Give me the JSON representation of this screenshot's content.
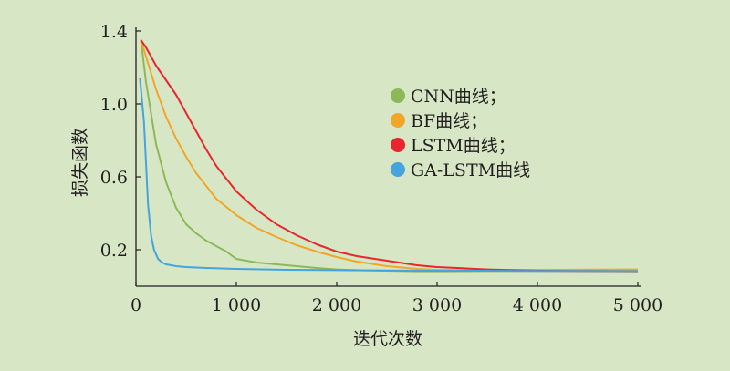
{
  "chart_data": {
    "type": "line",
    "title": "",
    "xlabel": "迭代次数",
    "ylabel": "损失函数",
    "xlim": [
      0,
      5000
    ],
    "ylim": [
      0,
      1.4
    ],
    "xticks": [
      0,
      1000,
      2000,
      3000,
      4000,
      5000
    ],
    "xtick_labels": [
      "0",
      "1 000",
      "2 000",
      "3 000",
      "4 000",
      "5 000"
    ],
    "yticks": [
      0.2,
      0.6,
      1.0,
      1.4
    ],
    "ytick_labels": [
      "0.2",
      "0.6",
      "1.0",
      "1.4"
    ],
    "grid": false,
    "legend_position": "center-right",
    "series": [
      {
        "name": "CNN曲线；",
        "color": "#8db85a",
        "x": [
          50,
          100,
          200,
          300,
          400,
          500,
          600,
          700,
          800,
          900,
          1000,
          1200,
          1400,
          1600,
          1800,
          2000,
          2200,
          2500,
          2800,
          3000,
          3500,
          4000,
          4500,
          5000
        ],
        "y": [
          1.35,
          1.12,
          0.78,
          0.57,
          0.43,
          0.34,
          0.29,
          0.25,
          0.22,
          0.19,
          0.15,
          0.13,
          0.12,
          0.11,
          0.1,
          0.092,
          0.088,
          0.085,
          0.082,
          0.082,
          0.083,
          0.084,
          0.086,
          0.087
        ]
      },
      {
        "name": "BF曲线；",
        "color": "#f0a62a",
        "x": [
          50,
          100,
          200,
          300,
          400,
          500,
          600,
          700,
          800,
          1000,
          1200,
          1400,
          1600,
          1800,
          2000,
          2200,
          2500,
          2800,
          3000,
          3500,
          4000,
          4500,
          5000
        ],
        "y": [
          1.35,
          1.26,
          1.08,
          0.93,
          0.81,
          0.71,
          0.62,
          0.55,
          0.48,
          0.39,
          0.32,
          0.27,
          0.225,
          0.19,
          0.16,
          0.135,
          0.11,
          0.095,
          0.09,
          0.088,
          0.09,
          0.091,
          0.092
        ]
      },
      {
        "name": "LSTM曲线；",
        "color": "#e8262c",
        "x": [
          50,
          100,
          200,
          300,
          400,
          500,
          600,
          700,
          800,
          1000,
          1200,
          1400,
          1600,
          1800,
          2000,
          2200,
          2500,
          2800,
          3000,
          3500,
          4000,
          4500,
          5000
        ],
        "y": [
          1.35,
          1.31,
          1.21,
          1.13,
          1.05,
          0.95,
          0.85,
          0.75,
          0.66,
          0.52,
          0.42,
          0.34,
          0.28,
          0.23,
          0.19,
          0.165,
          0.14,
          0.115,
          0.105,
          0.092,
          0.085,
          0.083,
          0.082
        ]
      },
      {
        "name": "GA-LSTM曲线",
        "color": "#45a3dd",
        "x": [
          40,
          80,
          120,
          150,
          180,
          220,
          260,
          300,
          400,
          500,
          700,
          1000,
          1500,
          2000,
          2500,
          3000,
          3500,
          4000,
          4500,
          5000
        ],
        "y": [
          1.14,
          0.9,
          0.45,
          0.28,
          0.2,
          0.15,
          0.13,
          0.12,
          0.11,
          0.105,
          0.1,
          0.095,
          0.09,
          0.088,
          0.086,
          0.085,
          0.085,
          0.084,
          0.084,
          0.083
        ]
      }
    ]
  }
}
